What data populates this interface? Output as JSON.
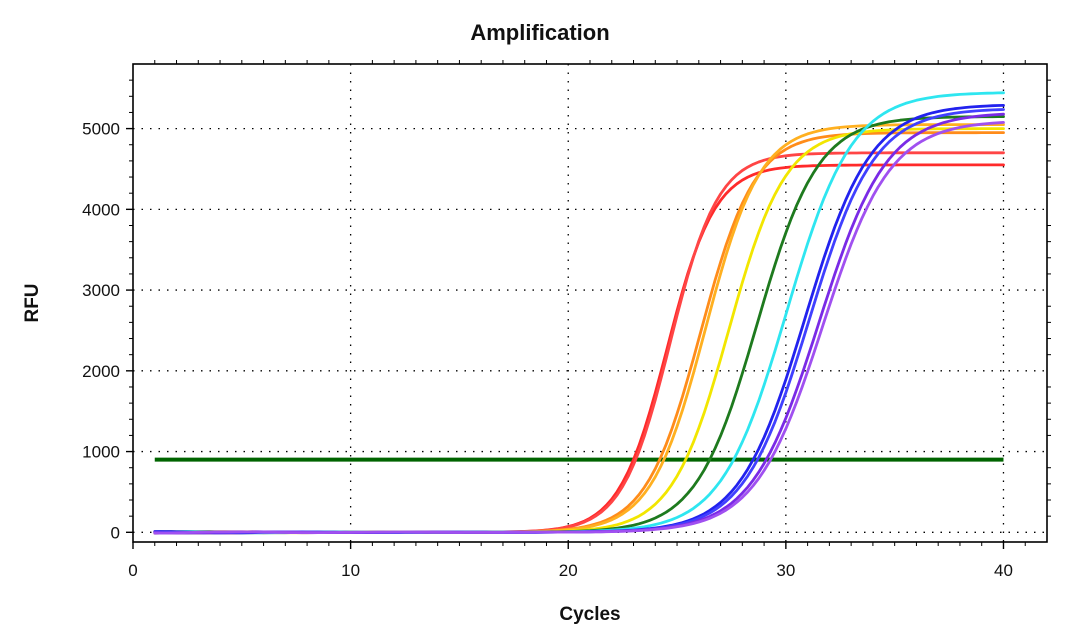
{
  "chart_data": {
    "type": "line",
    "title": "Amplification",
    "xlabel": "Cycles",
    "ylabel": "RFU",
    "xlim": [
      0,
      42
    ],
    "ylim": [
      -120,
      5800
    ],
    "xticks": [
      0,
      10,
      20,
      30,
      40
    ],
    "yticks": [
      0,
      1000,
      2000,
      3000,
      4000,
      5000
    ],
    "grid": true,
    "legend": "none",
    "threshold": {
      "value": 900,
      "x_range": [
        1,
        40
      ],
      "color": "#006400"
    },
    "series": [
      {
        "color": "#ff2a2a",
        "ct": 23.0,
        "plateau": 4550,
        "slope": 1.1,
        "x_range": [
          1,
          40
        ]
      },
      {
        "color": "#ff4545",
        "ct": 23.1,
        "plateau": 4700,
        "slope": 1.1,
        "x_range": [
          1,
          40
        ]
      },
      {
        "color": "#ff8c1a",
        "ct": 24.2,
        "plateau": 4950,
        "slope": 1.25,
        "x_range": [
          1,
          40
        ]
      },
      {
        "color": "#ffb020",
        "ct": 24.4,
        "plateau": 5050,
        "slope": 1.25,
        "x_range": [
          1,
          40
        ]
      },
      {
        "color": "#f2e600",
        "ct": 25.4,
        "plateau": 5000,
        "slope": 1.3,
        "x_range": [
          1,
          40
        ]
      },
      {
        "color": "#1e7a1e",
        "ct": 26.5,
        "plateau": 5150,
        "slope": 1.4,
        "x_range": [
          1,
          40
        ]
      },
      {
        "color": "#2ee6f0",
        "ct": 27.6,
        "plateau": 5450,
        "slope": 1.5,
        "x_range": [
          1,
          40
        ]
      },
      {
        "color": "#2222ee",
        "ct": 28.5,
        "plateau": 5300,
        "slope": 1.5,
        "x_range": [
          1,
          40
        ]
      },
      {
        "color": "#4040ff",
        "ct": 28.7,
        "plateau": 5250,
        "slope": 1.5,
        "x_range": [
          1,
          40
        ]
      },
      {
        "color": "#7a2ae6",
        "ct": 29.1,
        "plateau": 5200,
        "slope": 1.55,
        "x_range": [
          1,
          40
        ]
      },
      {
        "color": "#a050f0",
        "ct": 29.3,
        "plateau": 5100,
        "slope": 1.55,
        "x_range": [
          1,
          40
        ]
      }
    ]
  }
}
